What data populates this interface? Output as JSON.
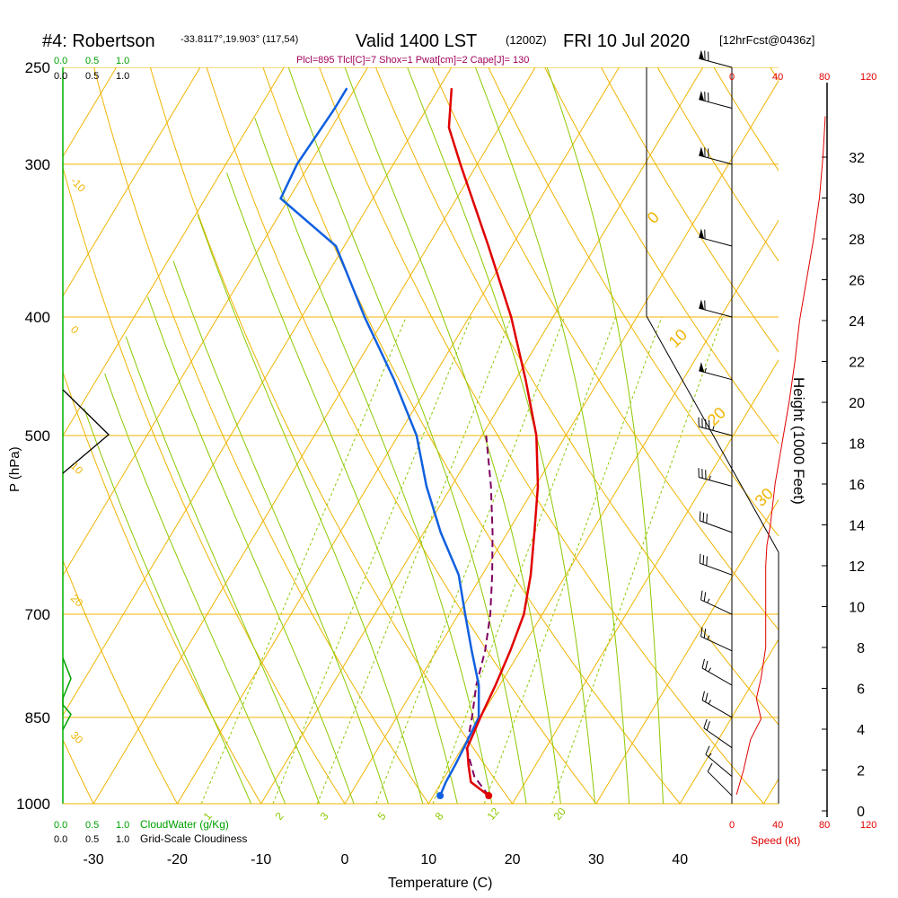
{
  "header": {
    "station": "#4: Robertson",
    "coords": "-33.8117°,19.903° (117,54)",
    "valid": "Valid 1400 LST",
    "utc": "(1200Z)",
    "date": "FRI 10 Jul 2020",
    "forecast": "[12hrFcst@0436z]",
    "params": "Plcl=895 Tlcl[C]=7 Shox=1 Pwat[cm]=2 Cape[J]= 130"
  },
  "cloud_scale_top": {
    "green": [
      "0.0",
      "0.5",
      "1.0"
    ],
    "black": [
      "0.0",
      "0.5",
      "1.0"
    ]
  },
  "cloud_scale_bottom": {
    "green": [
      "0.0",
      "0.5",
      "1.0"
    ],
    "green_label": "CloudWater (g/Kg)",
    "black": [
      "0.0",
      "0.5",
      "1.0"
    ],
    "black_label": "Grid-Scale Cloudiness"
  },
  "speed_scale": {
    "top": [
      "0",
      "40",
      "80",
      "120"
    ],
    "bottom": [
      "0",
      "40",
      "80",
      "120"
    ],
    "label": "Speed (kt)"
  },
  "height_axis": {
    "label": "Height (1000 Feet)",
    "ticks": [
      "0",
      "2",
      "4",
      "6",
      "8",
      "10",
      "12",
      "14",
      "16",
      "18",
      "20",
      "22",
      "24",
      "26",
      "28",
      "30",
      "32"
    ]
  },
  "colors": {
    "isobar": "#f0b400",
    "isotherm": "#f0b400",
    "dry_adiabat": "#f0b400",
    "moist_adiabat": "#8cc800",
    "mixing_ratio": "#8cc800",
    "temperature": "#e00000",
    "dewpoint": "#1060e0",
    "parcel": "#800060",
    "cloudwater": "#00a000",
    "speed": "#e00000",
    "params": "#a0005a"
  },
  "chart_data": {
    "type": "skew-t",
    "title": "#4: Robertson -33.8117°,19.903° (117,54)   Valid 1400 LST (1200Z) FRI 10 Jul 2020 [12hrFcst@0436z]",
    "xlabel": "Temperature (C)",
    "ylabel": "P (hPa)",
    "x_ticks": [
      -30,
      -20,
      -10,
      0,
      10,
      20,
      30,
      40
    ],
    "y_ticks": [
      250,
      300,
      400,
      500,
      700,
      850,
      1000
    ],
    "isotherm_labels": [
      "-10",
      "0",
      "10",
      "20",
      "30",
      "0",
      "10",
      "20",
      "30"
    ],
    "mixing_ratio_labels": [
      "1",
      "2",
      "3",
      "5",
      "8",
      "12",
      "20"
    ],
    "temperature_profile": [
      {
        "p": 985,
        "t": 16.6
      },
      {
        "p": 960,
        "t": 13.5
      },
      {
        "p": 930,
        "t": 12.0
      },
      {
        "p": 900,
        "t": 10.6
      },
      {
        "p": 850,
        "t": 10.0
      },
      {
        "p": 800,
        "t": 9.5
      },
      {
        "p": 750,
        "t": 8.8
      },
      {
        "p": 700,
        "t": 7.8
      },
      {
        "p": 650,
        "t": 5.8
      },
      {
        "p": 600,
        "t": 3.2
      },
      {
        "p": 550,
        "t": 0.3
      },
      {
        "p": 500,
        "t": -3.5
      },
      {
        "p": 450,
        "t": -8.8
      },
      {
        "p": 400,
        "t": -15.0
      },
      {
        "p": 350,
        "t": -22.8
      },
      {
        "p": 300,
        "t": -32.0
      },
      {
        "p": 280,
        "t": -36.0
      },
      {
        "p": 260,
        "t": -38.5
      }
    ],
    "dewpoint_profile": [
      {
        "p": 985,
        "t": 10.8
      },
      {
        "p": 960,
        "t": 10.5
      },
      {
        "p": 930,
        "t": 10.4
      },
      {
        "p": 900,
        "t": 10.2
      },
      {
        "p": 850,
        "t": 9.8
      },
      {
        "p": 800,
        "t": 7.5
      },
      {
        "p": 750,
        "t": 4.2
      },
      {
        "p": 700,
        "t": 0.8
      },
      {
        "p": 650,
        "t": -2.8
      },
      {
        "p": 600,
        "t": -8.0
      },
      {
        "p": 550,
        "t": -13.0
      },
      {
        "p": 500,
        "t": -17.8
      },
      {
        "p": 450,
        "t": -24.5
      },
      {
        "p": 400,
        "t": -32.5
      },
      {
        "p": 350,
        "t": -41.0
      },
      {
        "p": 320,
        "t": -51.0
      },
      {
        "p": 300,
        "t": -51.5
      },
      {
        "p": 270,
        "t": -51.0
      },
      {
        "p": 260,
        "t": -51.0
      }
    ],
    "parcel_profile": [
      {
        "p": 985,
        "t": 16.6
      },
      {
        "p": 950,
        "t": 13.5
      },
      {
        "p": 900,
        "t": 10.5
      },
      {
        "p": 850,
        "t": 9.0
      },
      {
        "p": 800,
        "t": 7.2
      },
      {
        "p": 750,
        "t": 5.8
      },
      {
        "p": 700,
        "t": 3.8
      },
      {
        "p": 650,
        "t": 1.2
      },
      {
        "p": 600,
        "t": -1.8
      },
      {
        "p": 550,
        "t": -5.3
      },
      {
        "p": 500,
        "t": -9.5
      }
    ],
    "speed_profile_kt": [
      {
        "h": 0.8,
        "s": 4
      },
      {
        "h": 2,
        "s": 10
      },
      {
        "h": 3.5,
        "s": 16
      },
      {
        "h": 4.5,
        "s": 25
      },
      {
        "h": 5.5,
        "s": 21
      },
      {
        "h": 6.5,
        "s": 25
      },
      {
        "h": 8,
        "s": 29
      },
      {
        "h": 10,
        "s": 29
      },
      {
        "h": 12,
        "s": 29
      },
      {
        "h": 13,
        "s": 30
      },
      {
        "h": 14,
        "s": 33
      },
      {
        "h": 16,
        "s": 37
      },
      {
        "h": 18,
        "s": 43
      },
      {
        "h": 20,
        "s": 49
      },
      {
        "h": 22,
        "s": 54
      },
      {
        "h": 24,
        "s": 58
      },
      {
        "h": 26,
        "s": 64
      },
      {
        "h": 28,
        "s": 70
      },
      {
        "h": 30,
        "s": 75
      },
      {
        "h": 32,
        "s": 78
      },
      {
        "h": 34,
        "s": 80
      }
    ],
    "cloudwater_profile": [
      {
        "p": 760,
        "v": 0.0
      },
      {
        "p": 790,
        "v": 0.05
      },
      {
        "p": 820,
        "v": 0.0
      },
      {
        "p": 830,
        "v": 0.0
      },
      {
        "p": 845,
        "v": 0.05
      },
      {
        "p": 870,
        "v": 0.0
      }
    ],
    "wind_barbs": [
      {
        "p": 985,
        "dir": 315,
        "spd": 10
      },
      {
        "p": 950,
        "dir": 310,
        "spd": 15
      },
      {
        "p": 900,
        "dir": 305,
        "spd": 20
      },
      {
        "p": 850,
        "dir": 300,
        "spd": 25
      },
      {
        "p": 800,
        "dir": 300,
        "spd": 25
      },
      {
        "p": 750,
        "dir": 295,
        "spd": 25
      },
      {
        "p": 700,
        "dir": 295,
        "spd": 25
      },
      {
        "p": 650,
        "dir": 290,
        "spd": 30
      },
      {
        "p": 600,
        "dir": 290,
        "spd": 30
      },
      {
        "p": 550,
        "dir": 285,
        "spd": 35
      },
      {
        "p": 500,
        "dir": 285,
        "spd": 45
      },
      {
        "p": 450,
        "dir": 285,
        "spd": 55
      },
      {
        "p": 400,
        "dir": 285,
        "spd": 60
      },
      {
        "p": 350,
        "dir": 285,
        "spd": 60
      },
      {
        "p": 300,
        "dir": 285,
        "spd": 70
      },
      {
        "p": 270,
        "dir": 285,
        "spd": 70
      },
      {
        "p": 250,
        "dir": 285,
        "spd": 70
      }
    ]
  }
}
